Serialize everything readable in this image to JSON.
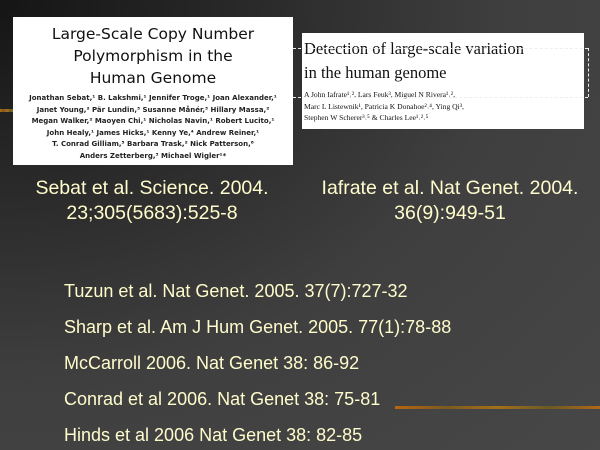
{
  "papers": [
    {
      "title": [
        "Large-Scale Copy Number",
        "Polymorphism in the",
        "Human Genome"
      ],
      "authors": [
        "Jonathan Sebat,¹ B. Lakshmi,¹ Jennifer Troge,¹ Joan Alexander,¹",
        "Janet Young,² Pär Lundin,³ Susanne Månér,³ Hillary Massa,²",
        "Megan Walker,² Maoyen Chi,¹ Nicholas Navin,¹ Robert Lucito,¹",
        "John Healy,¹ James Hicks,¹ Kenny Ye,⁴ Andrew Reiner,¹",
        "T. Conrad Gilliam,⁵ Barbara Trask,² Nick Patterson,⁶",
        "Anders Zetterberg,³ Michael Wigler¹*"
      ],
      "caption": [
        "Sebat et al. Science. 2004.",
        "23;305(5683):525-8"
      ]
    },
    {
      "title": [
        "Detection of large-scale variation",
        "in the human genome"
      ],
      "authors": [
        "A John Iafrate¹˒², Lars Feuk³, Miguel N Rivera¹˒²,",
        "Marc L Listewnik¹, Patricia K Donahoe²˒⁴, Ying Qi³,",
        "Stephen W Scherer³˒⁵ & Charles Lee¹˒²˒⁵"
      ],
      "caption": [
        "Iafrate et al. Nat Genet. 2004.",
        "36(9):949-51"
      ]
    }
  ],
  "references": [
    "Tuzun et al. Nat Genet. 2005. 37(7):727-32",
    "Sharp et al. Am J Hum Genet. 2005. 77(1):78-88",
    "McCarroll 2006. Nat Genet 38: 86-92",
    "Conrad et al 2006. Nat Genet 38: 75-81",
    "Hinds et al 2006 Nat Genet 38: 82-85"
  ],
  "colors": {
    "text": "#fffccc",
    "accent_line": "#b8660f",
    "background": "#474747"
  }
}
